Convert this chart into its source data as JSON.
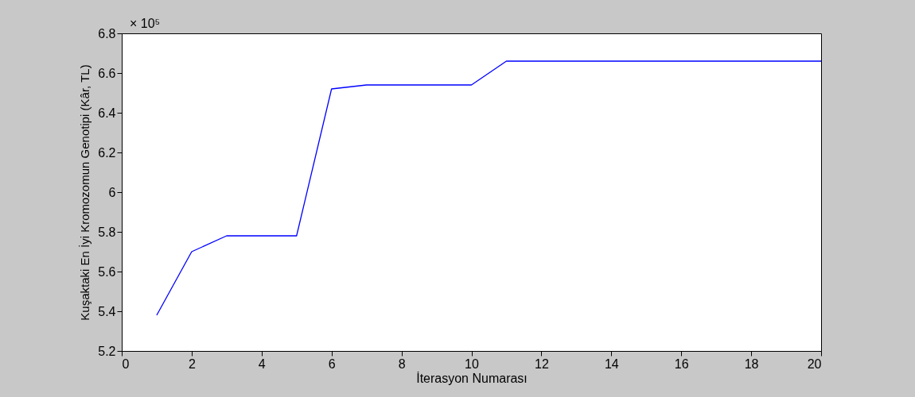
{
  "chart_data": {
    "type": "line",
    "xlabel": "İterasyon Numarası",
    "ylabel": "Kuşaktaki En İyi Kromozomun Genotipi (Kâr, TL)",
    "x": [
      1,
      2,
      3,
      4,
      5,
      6,
      7,
      8,
      9,
      10,
      11,
      12,
      13,
      14,
      15,
      16,
      17,
      18,
      19,
      20
    ],
    "series": [
      {
        "color": "#0000ff",
        "values": [
          5.38,
          5.7,
          5.78,
          5.78,
          5.78,
          6.52,
          6.54,
          6.54,
          6.54,
          6.54,
          6.66,
          6.66,
          6.66,
          6.66,
          6.66,
          6.66,
          6.66,
          6.66,
          6.66,
          6.66
        ]
      }
    ],
    "xlim": [
      0,
      20
    ],
    "xticks": [
      0,
      2,
      4,
      6,
      8,
      10,
      12,
      14,
      16,
      18,
      20
    ],
    "ylim": [
      5.2,
      6.8
    ],
    "yticks": [
      5.2,
      5.4,
      5.6,
      5.8,
      6,
      6.2,
      6.4,
      6.6,
      6.8
    ],
    "annotations": [
      "× 10⁵"
    ],
    "grid": false,
    "legend": false,
    "marker": "none",
    "line_style": "solid"
  }
}
